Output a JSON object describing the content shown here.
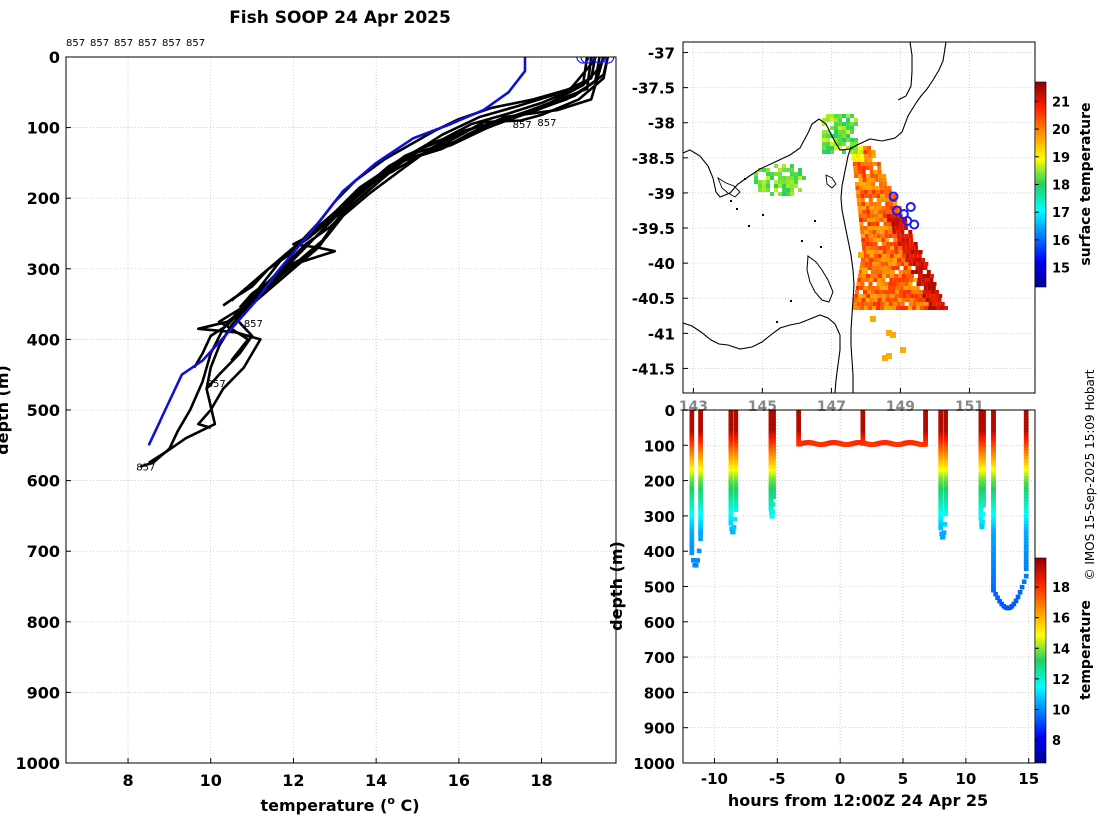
{
  "page": {
    "title": "Fish SOOP 24 Apr 2025",
    "credit": "© IMOS 15-Sep-2025 15:09 Hobart"
  },
  "colors": {
    "profiles": "#000000",
    "climatology": "#1010d0",
    "surface_markers": "#1a1aff",
    "grid": "#b0b0b0",
    "land_coast": "#000000"
  },
  "chart_data": [
    {
      "id": "temperature-profiles",
      "type": "line",
      "title": "",
      "xlabel": "temperature (° C)",
      "xlabel_parts": [
        "temperature (",
        "o",
        " C)"
      ],
      "ylabel": "depth (m)",
      "xlim": [
        6.5,
        19.8
      ],
      "ylim": [
        1000,
        0
      ],
      "xticks": [
        8,
        10,
        12,
        14,
        16,
        18
      ],
      "yticks": [
        0,
        100,
        200,
        300,
        400,
        500,
        600,
        700,
        800,
        900,
        1000
      ],
      "top_labels": [
        "857",
        "857",
        "857",
        "857",
        "857",
        "857"
      ],
      "drop_labels": [
        {
          "text": "857",
          "x": 17.3,
          "y": 95
        },
        {
          "text": "857",
          "x": 17.9,
          "y": 92
        },
        {
          "text": "857",
          "x": 10.8,
          "y": 377
        },
        {
          "text": "857",
          "x": 9.9,
          "y": 462
        },
        {
          "text": "857",
          "x": 8.2,
          "y": 580
        }
      ],
      "surface_markers_x": [
        19.0,
        19.1,
        19.4,
        19.6
      ],
      "climatology": {
        "name": "climatology",
        "points": [
          [
            17.6,
            0
          ],
          [
            17.6,
            20
          ],
          [
            17.2,
            50
          ],
          [
            16.6,
            75
          ],
          [
            15.8,
            95
          ],
          [
            14.9,
            115
          ],
          [
            14.0,
            150
          ],
          [
            13.2,
            190
          ],
          [
            12.6,
            235
          ],
          [
            12.1,
            270
          ],
          [
            11.6,
            305
          ],
          [
            11.1,
            345
          ],
          [
            10.5,
            385
          ],
          [
            9.8,
            430
          ],
          [
            9.3,
            450
          ],
          [
            8.9,
            500
          ],
          [
            8.7,
            525
          ],
          [
            8.5,
            550
          ]
        ]
      },
      "series": [
        {
          "name": "drop-1",
          "points": [
            [
              19.5,
              0
            ],
            [
              19.4,
              20
            ],
            [
              19.2,
              60
            ],
            [
              18.4,
              75
            ],
            [
              17.1,
              85
            ],
            [
              16.2,
              110
            ],
            [
              15.6,
              130
            ],
            [
              14.5,
              150
            ],
            [
              13.6,
              185
            ],
            [
              13.0,
              220
            ],
            [
              12.4,
              255
            ],
            [
              11.8,
              280
            ],
            [
              11.4,
              310
            ],
            [
              11.0,
              340
            ],
            [
              10.6,
              365
            ],
            [
              10.3,
              385
            ],
            [
              10.0,
              420
            ],
            [
              9.8,
              460
            ],
            [
              9.5,
              500
            ],
            [
              9.2,
              530
            ],
            [
              9.0,
              555
            ],
            [
              8.6,
              575
            ],
            [
              8.3,
              580
            ]
          ]
        },
        {
          "name": "drop-2",
          "points": [
            [
              19.3,
              0
            ],
            [
              19.2,
              30
            ],
            [
              18.5,
              50
            ],
            [
              17.4,
              70
            ],
            [
              16.5,
              85
            ],
            [
              15.6,
              110
            ],
            [
              14.8,
              140
            ],
            [
              14.1,
              175
            ],
            [
              13.5,
              205
            ],
            [
              12.9,
              240
            ],
            [
              12.3,
              265
            ],
            [
              11.7,
              300
            ],
            [
              11.2,
              330
            ],
            [
              10.8,
              360
            ],
            [
              10.5,
              380
            ],
            [
              10.2,
              410
            ],
            [
              10.0,
              440
            ],
            [
              9.9,
              470
            ],
            [
              10.1,
              520
            ],
            [
              9.4,
              540
            ],
            [
              8.9,
              560
            ],
            [
              8.5,
              575
            ]
          ]
        },
        {
          "name": "drop-3",
          "points": [
            [
              19.1,
              0
            ],
            [
              19.0,
              40
            ],
            [
              18.2,
              65
            ],
            [
              17.3,
              85
            ],
            [
              16.4,
              100
            ],
            [
              15.2,
              125
            ],
            [
              14.3,
              155
            ],
            [
              13.6,
              190
            ],
            [
              13.1,
              230
            ],
            [
              12.6,
              270
            ],
            [
              12.0,
              300
            ],
            [
              11.3,
              335
            ],
            [
              10.9,
              355
            ],
            [
              10.6,
              370
            ],
            [
              11.0,
              395
            ],
            [
              10.7,
              420
            ],
            [
              10.2,
              450
            ],
            [
              9.9,
              470
            ]
          ]
        },
        {
          "name": "drop-4",
          "points": [
            [
              19.6,
              0
            ],
            [
              19.5,
              25
            ],
            [
              18.8,
              55
            ],
            [
              17.9,
              75
            ],
            [
              16.9,
              95
            ],
            [
              15.9,
              120
            ],
            [
              15.0,
              135
            ],
            [
              14.2,
              165
            ],
            [
              13.5,
              195
            ],
            [
              13.0,
              235
            ],
            [
              12.7,
              260
            ],
            [
              12.2,
              285
            ],
            [
              11.6,
              315
            ],
            [
              11.1,
              345
            ],
            [
              10.4,
              375
            ],
            [
              9.7,
              385
            ],
            [
              10.6,
              390
            ],
            [
              11.2,
              400
            ],
            [
              10.8,
              440
            ],
            [
              10.3,
              470
            ],
            [
              10.0,
              500
            ],
            [
              9.7,
              520
            ],
            [
              10.0,
              525
            ]
          ]
        },
        {
          "name": "drop-5",
          "points": [
            [
              19.4,
              0
            ],
            [
              19.3,
              35
            ],
            [
              18.6,
              60
            ],
            [
              17.6,
              80
            ],
            [
              16.7,
              100
            ],
            [
              15.8,
              125
            ],
            [
              14.7,
              145
            ],
            [
              13.9,
              180
            ],
            [
              13.3,
              210
            ],
            [
              12.7,
              245
            ],
            [
              12.2,
              275
            ],
            [
              11.7,
              305
            ],
            [
              11.2,
              330
            ],
            [
              10.8,
              355
            ],
            [
              10.4,
              380
            ],
            [
              10.0,
              395
            ],
            [
              9.8,
              420
            ],
            [
              9.6,
              440
            ]
          ]
        },
        {
          "name": "drop-6",
          "points": [
            [
              19.2,
              0
            ],
            [
              19.1,
              45
            ],
            [
              18.0,
              70
            ],
            [
              17.0,
              90
            ],
            [
              16.1,
              105
            ],
            [
              15.3,
              130
            ],
            [
              14.6,
              160
            ],
            [
              13.8,
              195
            ],
            [
              13.2,
              225
            ],
            [
              12.8,
              255
            ],
            [
              12.4,
              280
            ],
            [
              11.9,
              295
            ],
            [
              11.5,
              320
            ],
            [
              10.9,
              350
            ],
            [
              10.2,
              375
            ],
            [
              10.5,
              385
            ],
            [
              10.9,
              400
            ],
            [
              10.5,
              430
            ]
          ]
        },
        {
          "name": "drop-7",
          "points": [
            [
              19.5,
              0
            ],
            [
              19.4,
              15
            ],
            [
              19.0,
              40
            ],
            [
              18.0,
              65
            ],
            [
              17.2,
              80
            ],
            [
              16.3,
              95
            ],
            [
              15.5,
              120
            ],
            [
              14.7,
              140
            ],
            [
              14.0,
              170
            ],
            [
              13.4,
              200
            ],
            [
              12.9,
              230
            ],
            [
              12.5,
              250
            ],
            [
              12.0,
              265
            ],
            [
              12.6,
              270
            ],
            [
              13.0,
              275
            ],
            [
              12.2,
              290
            ],
            [
              11.6,
              310
            ],
            [
              11.0,
              335
            ],
            [
              10.7,
              355
            ]
          ]
        },
        {
          "name": "drop-8",
          "points": [
            [
              19.6,
              0
            ],
            [
              19.5,
              30
            ],
            [
              18.9,
              60
            ],
            [
              18.0,
              82
            ],
            [
              17.5,
              90
            ],
            [
              16.6,
              92
            ],
            [
              15.9,
              115
            ],
            [
              15.1,
              138
            ],
            [
              14.4,
              162
            ],
            [
              13.7,
              182
            ],
            [
              13.4,
              200
            ],
            [
              12.8,
              230
            ],
            [
              12.3,
              255
            ],
            [
              11.9,
              280
            ],
            [
              11.4,
              300
            ],
            [
              11.0,
              325
            ],
            [
              10.6,
              340
            ],
            [
              10.3,
              352
            ]
          ]
        },
        {
          "name": "drop-9",
          "points": [
            [
              19.3,
              0
            ],
            [
              19.2,
              10
            ],
            [
              18.7,
              45
            ],
            [
              17.8,
              60
            ],
            [
              16.8,
              72
            ],
            [
              16.0,
              88
            ],
            [
              15.4,
              105
            ],
            [
              14.8,
              125
            ],
            [
              14.2,
              145
            ],
            [
              13.5,
              175
            ],
            [
              13.0,
              205
            ],
            [
              12.6,
              235
            ],
            [
              12.2,
              260
            ],
            [
              11.7,
              285
            ],
            [
              11.3,
              305
            ],
            [
              10.9,
              325
            ],
            [
              10.5,
              345
            ]
          ]
        }
      ]
    },
    {
      "id": "surface-temperature-map",
      "type": "heatmap",
      "xlim": [
        142.7,
        152.9
      ],
      "ylim": [
        -41.85,
        -36.85
      ],
      "yticks": [
        -37,
        -37.5,
        -38,
        -38.5,
        -39,
        -39.5,
        -40,
        -40.5,
        -41,
        -41.5
      ],
      "ytick_labels": [
        "-37",
        "-37.5",
        "-38",
        "-38.5",
        "-39",
        "-39.5",
        "-40",
        "-40.5",
        "-41",
        "-41.5"
      ],
      "xticks": [
        143,
        145,
        147,
        149,
        151
      ],
      "xtick_labels": [
        "143",
        "145",
        "147",
        "149",
        "151"
      ],
      "colorbar_label": "surface temperature",
      "colorbar_ticks": [
        15,
        16,
        17,
        18,
        19,
        20,
        21
      ],
      "colorbar_range": [
        14.3,
        21.7
      ],
      "drop_positions": [
        [
          148.8,
          -39.05
        ],
        [
          148.9,
          -39.25
        ],
        [
          149.1,
          -39.3
        ],
        [
          149.3,
          -39.2
        ],
        [
          149.4,
          -39.45
        ],
        [
          149.2,
          -39.4
        ]
      ]
    },
    {
      "id": "depth-time-section",
      "type": "scatter",
      "xlabel": "hours from 12:00Z 24 Apr 25",
      "ylabel": "depth (m)",
      "xlim": [
        -12.5,
        15.5
      ],
      "ylim": [
        1000,
        0
      ],
      "xticks": [
        -10,
        -5,
        0,
        5,
        10,
        15
      ],
      "yticks": [
        0,
        100,
        200,
        300,
        400,
        500,
        600,
        700,
        800,
        900,
        1000
      ],
      "colorbar_label": "temperature",
      "colorbar_ticks": [
        8,
        10,
        12,
        14,
        16,
        18
      ],
      "colorbar_range": [
        6.5,
        19.9
      ],
      "casts": [
        {
          "x0": -11.8,
          "x1": -11.1,
          "max_depth": 460
        },
        {
          "x0": -8.7,
          "x1": -8.3,
          "max_depth": 365
        },
        {
          "x0": -5.5,
          "x1": -5.3,
          "max_depth": 320
        },
        {
          "x0": 8.0,
          "x1": 8.4,
          "max_depth": 380
        },
        {
          "x0": 11.2,
          "x1": 11.4,
          "max_depth": 350
        },
        {
          "x0": 12.2,
          "x1": 14.8,
          "max_depth": 580
        }
      ],
      "shallow_segment": {
        "x0": -3.3,
        "x1": 6.8,
        "depth": 95
      }
    }
  ]
}
